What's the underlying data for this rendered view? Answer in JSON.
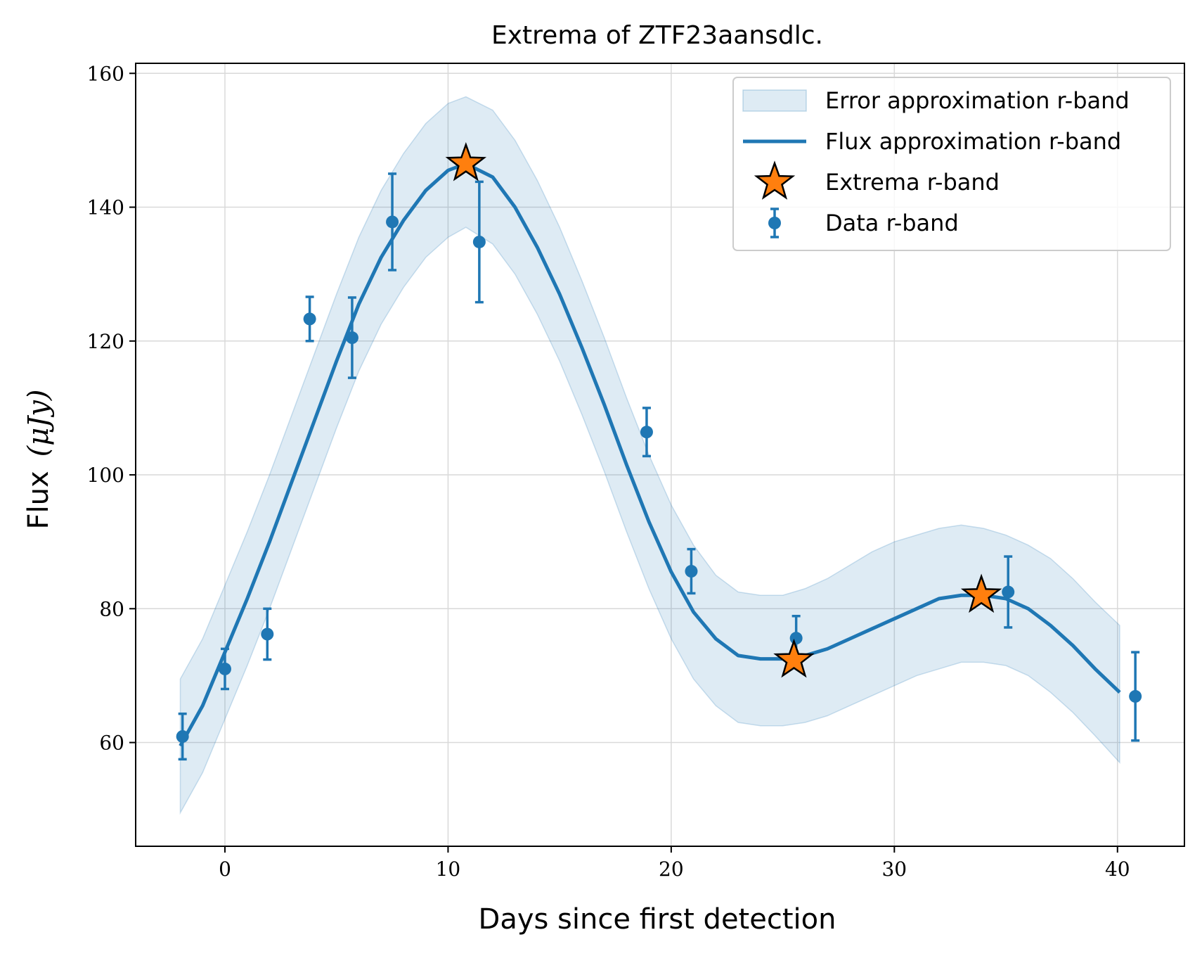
{
  "chart_data": {
    "type": "line",
    "title": "Extrema of ZTF23aansdlc.",
    "xlabel": "Days since first detection",
    "ylabel_text": "Flux",
    "ylabel_math": "(μJy)",
    "xlim": [
      -4,
      43
    ],
    "ylim": [
      44.5,
      161.5
    ],
    "xticks": [
      0,
      10,
      20,
      30,
      40
    ],
    "yticks": [
      60,
      80,
      100,
      120,
      140,
      160
    ],
    "grid": true,
    "legend_position": "top-right",
    "colors": {
      "blue": "#1f77b4",
      "orange": "#ff7f0e",
      "band": "#1f77b4"
    },
    "series": [
      {
        "name": "Error approximation r-band",
        "kind": "band",
        "x": [
          -2,
          -1,
          0,
          1,
          2,
          3,
          4,
          5,
          6,
          7,
          8,
          9,
          10,
          10.8,
          12,
          13,
          14,
          15,
          16,
          17,
          18,
          19,
          20,
          21,
          22,
          23,
          24,
          25,
          26,
          27,
          28,
          29,
          30,
          31,
          32,
          33,
          34,
          35,
          36,
          37,
          38,
          39,
          40.1
        ],
        "lower": [
          49.5,
          55.5,
          63.5,
          71.5,
          80,
          89,
          98,
          107,
          115.5,
          122.5,
          128,
          132.5,
          135.5,
          137,
          134.5,
          130,
          124,
          117,
          109,
          100.5,
          91.5,
          83,
          75.5,
          69.5,
          65.5,
          63,
          62.5,
          62.5,
          63,
          64,
          65.5,
          67,
          68.5,
          70,
          71,
          72,
          72,
          71.5,
          70,
          67.5,
          64.5,
          61,
          57
        ],
        "upper": [
          69.5,
          75.5,
          83.5,
          91.5,
          100,
          109,
          118,
          127,
          135.5,
          142.5,
          148,
          152.5,
          155.5,
          156.5,
          154.5,
          150,
          144,
          137,
          129,
          120.5,
          111.5,
          103,
          95.5,
          89.5,
          85,
          82.5,
          82,
          82,
          83,
          84.5,
          86.5,
          88.5,
          90,
          91,
          92,
          92.5,
          92,
          91,
          89.5,
          87.5,
          84.5,
          81,
          77.5
        ]
      },
      {
        "name": "Flux approximation r-band",
        "kind": "line",
        "x": [
          -2,
          -1,
          0,
          1,
          2,
          3,
          4,
          5,
          6,
          7,
          8,
          9,
          10,
          10.8,
          12,
          13,
          14,
          15,
          16,
          17,
          18,
          19,
          20,
          21,
          22,
          23,
          24,
          25,
          26,
          27,
          28,
          29,
          30,
          31,
          32,
          33,
          34,
          35,
          36,
          37,
          38,
          39,
          40.1
        ],
        "y": [
          59.5,
          65.5,
          73.5,
          81.5,
          90,
          99,
          108,
          117,
          125.5,
          132.5,
          138,
          142.5,
          145.5,
          146.5,
          144.5,
          140,
          134,
          127,
          119,
          110.5,
          101.5,
          93,
          85.5,
          79.5,
          75.5,
          73,
          72.5,
          72.5,
          73,
          74,
          75.5,
          77,
          78.5,
          80,
          81.5,
          82,
          82,
          81.5,
          80,
          77.5,
          74.5,
          71,
          67.5
        ]
      },
      {
        "name": "Extrema r-band",
        "kind": "marker",
        "x": [
          10.8,
          25.5,
          33.9
        ],
        "y": [
          146.5,
          72.3,
          82.0
        ]
      },
      {
        "name": "Data r-band",
        "kind": "errorbar",
        "x": [
          -1.9,
          0.0,
          1.9,
          3.8,
          5.7,
          7.5,
          11.4,
          18.9,
          20.9,
          25.6,
          35.1,
          40.8
        ],
        "y": [
          60.9,
          71.0,
          76.2,
          123.3,
          120.5,
          137.8,
          134.8,
          106.4,
          85.6,
          75.6,
          82.5,
          66.9
        ],
        "yerr": [
          3.4,
          3.0,
          3.8,
          3.3,
          6.0,
          7.2,
          9.0,
          3.6,
          3.3,
          3.3,
          5.3,
          6.6
        ]
      }
    ]
  }
}
